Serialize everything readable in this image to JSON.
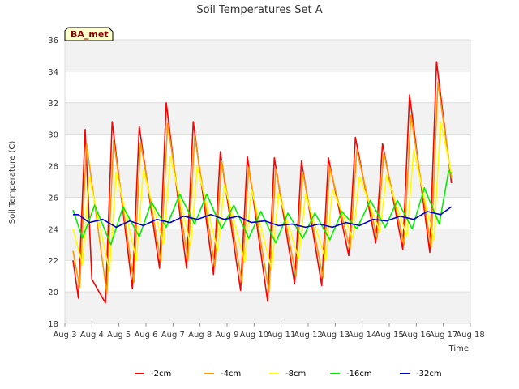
{
  "chart_data": {
    "type": "line",
    "title": "Soil Temperatures Set A",
    "xlabel": "Time",
    "ylabel": "Soil Temperature (C)",
    "badge": "BA_met",
    "x_ticks": [
      "Aug 3",
      "Aug 4",
      "Aug 5",
      "Aug 6",
      "Aug 7",
      "Aug 8",
      "Aug 9",
      "Aug 10",
      "Aug 11",
      "Aug 12",
      "Aug 13",
      "Aug 14",
      "Aug 15",
      "Aug 16",
      "Aug 17",
      "Aug 18"
    ],
    "xlim": [
      3,
      18
    ],
    "ylim": [
      18,
      36
    ],
    "y_ticks": [
      18,
      20,
      22,
      24,
      26,
      28,
      30,
      32,
      34,
      36
    ],
    "grid": true,
    "legend_position": "bottom",
    "x_start": 3.3,
    "x_end": 17.3,
    "series": [
      {
        "name": "-2cm",
        "color": "#ff0000",
        "points": [
          [
            3.3,
            22.0
          ],
          [
            3.5,
            19.6
          ],
          [
            3.75,
            30.3
          ],
          [
            4.0,
            20.8
          ],
          [
            4.5,
            19.3
          ],
          [
            4.75,
            30.8
          ],
          [
            5.5,
            20.2
          ],
          [
            5.75,
            30.5
          ],
          [
            6.5,
            21.5
          ],
          [
            6.75,
            32.0
          ],
          [
            7.5,
            21.5
          ],
          [
            7.75,
            30.8
          ],
          [
            8.5,
            21.1
          ],
          [
            8.75,
            28.9
          ],
          [
            9.5,
            20.1
          ],
          [
            9.75,
            28.6
          ],
          [
            10.5,
            19.4
          ],
          [
            10.75,
            28.5
          ],
          [
            11.5,
            20.5
          ],
          [
            11.75,
            28.3
          ],
          [
            12.5,
            20.4
          ],
          [
            12.75,
            28.5
          ],
          [
            13.5,
            22.3
          ],
          [
            13.75,
            29.8
          ],
          [
            14.5,
            23.1
          ],
          [
            14.75,
            29.4
          ],
          [
            15.5,
            22.7
          ],
          [
            15.75,
            32.5
          ],
          [
            16.5,
            22.5
          ],
          [
            16.75,
            34.6
          ],
          [
            17.3,
            26.9
          ]
        ]
      },
      {
        "name": "-4cm",
        "color": "#ff9900",
        "points": [
          [
            3.3,
            22.6
          ],
          [
            3.55,
            20.3
          ],
          [
            3.8,
            29.4
          ],
          [
            4.55,
            19.9
          ],
          [
            4.8,
            29.6
          ],
          [
            5.55,
            20.6
          ],
          [
            5.8,
            29.5
          ],
          [
            6.55,
            21.9
          ],
          [
            6.8,
            30.7
          ],
          [
            7.55,
            22.0
          ],
          [
            7.8,
            29.9
          ],
          [
            8.55,
            21.6
          ],
          [
            8.8,
            28.3
          ],
          [
            9.55,
            20.6
          ],
          [
            9.8,
            27.9
          ],
          [
            10.55,
            20.0
          ],
          [
            10.8,
            27.8
          ],
          [
            11.55,
            21.0
          ],
          [
            11.8,
            27.6
          ],
          [
            12.55,
            20.9
          ],
          [
            12.8,
            27.9
          ],
          [
            13.55,
            22.7
          ],
          [
            13.8,
            29.0
          ],
          [
            14.55,
            23.4
          ],
          [
            14.8,
            28.8
          ],
          [
            15.55,
            23.0
          ],
          [
            15.8,
            31.2
          ],
          [
            16.55,
            22.8
          ],
          [
            16.8,
            33.3
          ],
          [
            17.3,
            27.2
          ]
        ]
      },
      {
        "name": "-8cm",
        "color": "#ffff00",
        "points": [
          [
            3.3,
            24.0
          ],
          [
            3.65,
            21.7
          ],
          [
            3.9,
            27.3
          ],
          [
            4.65,
            21.3
          ],
          [
            4.9,
            27.6
          ],
          [
            5.65,
            22.0
          ],
          [
            5.9,
            27.7
          ],
          [
            6.65,
            23.0
          ],
          [
            6.9,
            28.6
          ],
          [
            7.65,
            22.9
          ],
          [
            7.9,
            28.0
          ],
          [
            8.65,
            22.6
          ],
          [
            8.9,
            26.8
          ],
          [
            9.65,
            21.9
          ],
          [
            9.9,
            26.5
          ],
          [
            10.65,
            21.4
          ],
          [
            10.9,
            26.3
          ],
          [
            11.65,
            22.1
          ],
          [
            11.9,
            26.2
          ],
          [
            12.65,
            22.0
          ],
          [
            12.9,
            26.5
          ],
          [
            13.65,
            23.4
          ],
          [
            13.9,
            27.3
          ],
          [
            14.65,
            23.8
          ],
          [
            14.9,
            27.4
          ],
          [
            15.65,
            23.5
          ],
          [
            15.9,
            29.0
          ],
          [
            16.65,
            23.3
          ],
          [
            16.9,
            30.8
          ],
          [
            17.3,
            27.5
          ]
        ]
      },
      {
        "name": "-16cm",
        "color": "#00ee00",
        "points": [
          [
            3.3,
            25.2
          ],
          [
            3.65,
            23.4
          ],
          [
            4.1,
            25.5
          ],
          [
            4.7,
            23.0
          ],
          [
            5.15,
            25.4
          ],
          [
            5.75,
            23.5
          ],
          [
            6.2,
            25.7
          ],
          [
            6.75,
            24.1
          ],
          [
            7.25,
            26.2
          ],
          [
            7.8,
            24.3
          ],
          [
            8.25,
            26.2
          ],
          [
            8.8,
            24.0
          ],
          [
            9.25,
            25.5
          ],
          [
            9.8,
            23.4
          ],
          [
            10.25,
            25.1
          ],
          [
            10.8,
            23.1
          ],
          [
            11.25,
            25.0
          ],
          [
            11.8,
            23.4
          ],
          [
            12.25,
            25.0
          ],
          [
            12.8,
            23.3
          ],
          [
            13.25,
            25.1
          ],
          [
            13.8,
            24.0
          ],
          [
            14.3,
            25.8
          ],
          [
            14.85,
            24.1
          ],
          [
            15.3,
            25.8
          ],
          [
            15.85,
            24.0
          ],
          [
            16.3,
            26.6
          ],
          [
            16.85,
            24.3
          ],
          [
            17.2,
            27.7
          ],
          [
            17.3,
            27.5
          ]
        ]
      },
      {
        "name": "-32cm",
        "color": "#0000cc",
        "points": [
          [
            3.3,
            24.9
          ],
          [
            3.5,
            24.9
          ],
          [
            3.9,
            24.4
          ],
          [
            4.4,
            24.6
          ],
          [
            4.9,
            24.1
          ],
          [
            5.4,
            24.5
          ],
          [
            5.9,
            24.2
          ],
          [
            6.4,
            24.6
          ],
          [
            6.9,
            24.4
          ],
          [
            7.4,
            24.8
          ],
          [
            7.9,
            24.6
          ],
          [
            8.4,
            24.9
          ],
          [
            8.9,
            24.6
          ],
          [
            9.4,
            24.8
          ],
          [
            9.9,
            24.4
          ],
          [
            10.4,
            24.5
          ],
          [
            10.9,
            24.2
          ],
          [
            11.4,
            24.3
          ],
          [
            11.9,
            24.1
          ],
          [
            12.4,
            24.3
          ],
          [
            12.9,
            24.1
          ],
          [
            13.4,
            24.4
          ],
          [
            13.9,
            24.2
          ],
          [
            14.4,
            24.6
          ],
          [
            14.9,
            24.5
          ],
          [
            15.4,
            24.8
          ],
          [
            15.9,
            24.6
          ],
          [
            16.4,
            25.1
          ],
          [
            16.9,
            24.9
          ],
          [
            17.3,
            25.4
          ]
        ]
      }
    ]
  }
}
